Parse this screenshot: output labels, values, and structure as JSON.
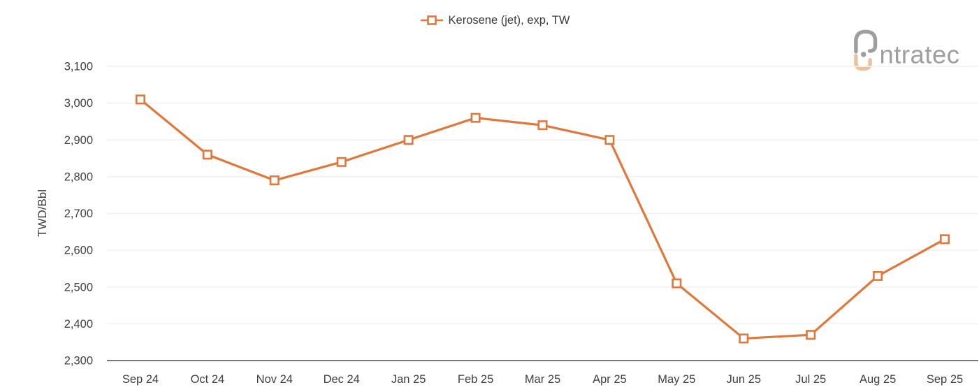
{
  "legend": {
    "label": "Kerosene (jet), exp, TW"
  },
  "logo": {
    "text": "ntratec"
  },
  "chart_data": {
    "type": "line",
    "title": "",
    "categories": [
      "Sep 24",
      "Oct 24",
      "Nov 24",
      "Dec 24",
      "Jan 25",
      "Feb 25",
      "Mar 25",
      "Apr 25",
      "May 25",
      "Jun 25",
      "Jul 25",
      "Aug 25",
      "Sep 25"
    ],
    "series": [
      {
        "name": "Kerosene (jet), exp, TW",
        "values": [
          3010,
          2860,
          2790,
          2840,
          2900,
          2960,
          2940,
          2900,
          2510,
          2360,
          2370,
          2530,
          2630
        ]
      }
    ],
    "xlabel": "",
    "ylabel": "TWD/Bbl",
    "ylim": [
      2300,
      3100
    ],
    "yticks": [
      2300,
      2400,
      2500,
      2600,
      2700,
      2800,
      2900,
      3000,
      3100
    ],
    "ytick_labels": [
      "2,300",
      "2,400",
      "2,500",
      "2,600",
      "2,700",
      "2,800",
      "2,900",
      "3,000",
      "3,100"
    ],
    "grid": true,
    "legend_position": "top-center",
    "marker": "hollow-square",
    "colors": {
      "line": "#E0783C",
      "marker_fill": "#FFFFFF",
      "grid": "#F1F1F1",
      "axis": "#7A7A7A",
      "text": "#404040",
      "logo_gray": "#9E9E9E",
      "logo_tan": "#EAC29C"
    }
  }
}
